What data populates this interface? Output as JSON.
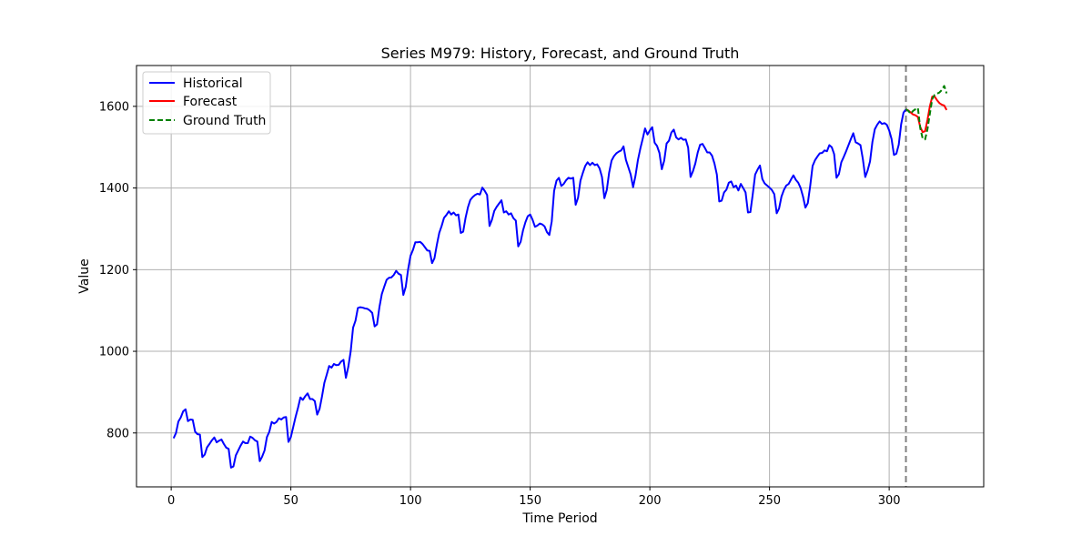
{
  "chart_data": {
    "type": "line",
    "title": "Series M979: History, Forecast, and Ground Truth",
    "xlabel": "Time Period",
    "ylabel": "Value",
    "xlim": [
      -14.5,
      339.5
    ],
    "ylim": [
      668,
      1700
    ],
    "x_ticks": [
      0,
      50,
      100,
      150,
      200,
      250,
      300
    ],
    "y_ticks": [
      800,
      1000,
      1200,
      1400,
      1600
    ],
    "grid": true,
    "legend_position": "top-left",
    "forecast_start": 307,
    "colors": {
      "historical": "#0000ff",
      "forecast": "#ff0000",
      "ground_truth": "#008000",
      "divider": "#808080",
      "grid": "#b0b0b0"
    },
    "series": [
      {
        "name": "Historical",
        "style": "solid",
        "color": "#0000ff",
        "x_start": 1,
        "values": [
          787,
          800,
          828,
          838,
          853,
          858,
          829,
          833,
          832,
          803,
          797,
          796,
          741,
          747,
          765,
          773,
          782,
          789,
          777,
          781,
          784,
          773,
          764,
          761,
          715,
          718,
          745,
          757,
          769,
          779,
          775,
          775,
          791,
          788,
          782,
          779,
          731,
          742,
          757,
          790,
          803,
          827,
          823,
          827,
          836,
          833,
          838,
          839,
          778,
          790,
          815,
          840,
          862,
          887,
          881,
          890,
          897,
          883,
          883,
          878,
          845,
          859,
          889,
          923,
          943,
          964,
          960,
          969,
          966,
          967,
          975,
          979,
          935,
          962,
          1000,
          1058,
          1075,
          1106,
          1108,
          1107,
          1105,
          1104,
          1100,
          1094,
          1061,
          1066,
          1108,
          1140,
          1158,
          1175,
          1180,
          1181,
          1187,
          1197,
          1190,
          1187,
          1138,
          1158,
          1201,
          1234,
          1248,
          1267,
          1267,
          1268,
          1263,
          1255,
          1247,
          1246,
          1216,
          1228,
          1261,
          1290,
          1307,
          1327,
          1334,
          1343,
          1335,
          1340,
          1333,
          1335,
          1290,
          1293,
          1327,
          1353,
          1371,
          1378,
          1383,
          1386,
          1384,
          1401,
          1393,
          1383,
          1307,
          1322,
          1344,
          1354,
          1362,
          1370,
          1340,
          1343,
          1335,
          1338,
          1326,
          1320,
          1257,
          1268,
          1296,
          1316,
          1331,
          1335,
          1322,
          1305,
          1308,
          1313,
          1311,
          1306,
          1292,
          1285,
          1318,
          1393,
          1418,
          1425,
          1405,
          1410,
          1419,
          1425,
          1423,
          1425,
          1359,
          1376,
          1418,
          1437,
          1454,
          1463,
          1456,
          1462,
          1456,
          1458,
          1448,
          1427,
          1375,
          1395,
          1438,
          1467,
          1478,
          1485,
          1489,
          1492,
          1502,
          1469,
          1451,
          1433,
          1402,
          1430,
          1468,
          1496,
          1520,
          1546,
          1531,
          1541,
          1549,
          1511,
          1503,
          1486,
          1446,
          1467,
          1509,
          1516,
          1536,
          1543,
          1524,
          1519,
          1523,
          1518,
          1519,
          1499,
          1427,
          1441,
          1460,
          1487,
          1506,
          1508,
          1498,
          1487,
          1487,
          1479,
          1460,
          1433,
          1367,
          1369,
          1389,
          1396,
          1413,
          1416,
          1402,
          1406,
          1394,
          1410,
          1400,
          1389,
          1340,
          1341,
          1385,
          1433,
          1445,
          1455,
          1422,
          1411,
          1406,
          1401,
          1395,
          1385,
          1338,
          1350,
          1379,
          1395,
          1406,
          1410,
          1421,
          1431,
          1420,
          1413,
          1400,
          1379,
          1352,
          1363,
          1405,
          1454,
          1468,
          1477,
          1485,
          1486,
          1492,
          1490,
          1505,
          1500,
          1483,
          1425,
          1434,
          1463,
          1476,
          1490,
          1505,
          1520,
          1534,
          1512,
          1509,
          1505,
          1471,
          1427,
          1443,
          1465,
          1513,
          1544,
          1555,
          1563,
          1557,
          1559,
          1555,
          1541,
          1520,
          1481,
          1484,
          1506,
          1556,
          1585,
          1592
        ]
      },
      {
        "name": "Forecast",
        "style": "solid",
        "color": "#ff0000",
        "x": [
          307,
          308,
          309,
          310,
          311,
          312,
          313,
          314,
          315,
          316,
          317,
          318,
          319,
          320,
          321,
          322,
          323,
          324
        ],
        "values": [
          1592,
          1590,
          1585,
          1580,
          1578,
          1574,
          1549,
          1537,
          1539,
          1567,
          1600,
          1624,
          1624,
          1615,
          1608,
          1604,
          1602,
          1591
        ]
      },
      {
        "name": "Ground Truth",
        "style": "dashed",
        "color": "#008000",
        "x": [
          307,
          308,
          309,
          310,
          311,
          312,
          313,
          314,
          315,
          316,
          317,
          318,
          319,
          320,
          321,
          322,
          323,
          324
        ],
        "values": [
          1593,
          1589,
          1582,
          1589,
          1593,
          1596,
          1546,
          1521,
          1519,
          1544,
          1582,
          1618,
          1628,
          1631,
          1634,
          1640,
          1650,
          1632
        ]
      }
    ]
  }
}
